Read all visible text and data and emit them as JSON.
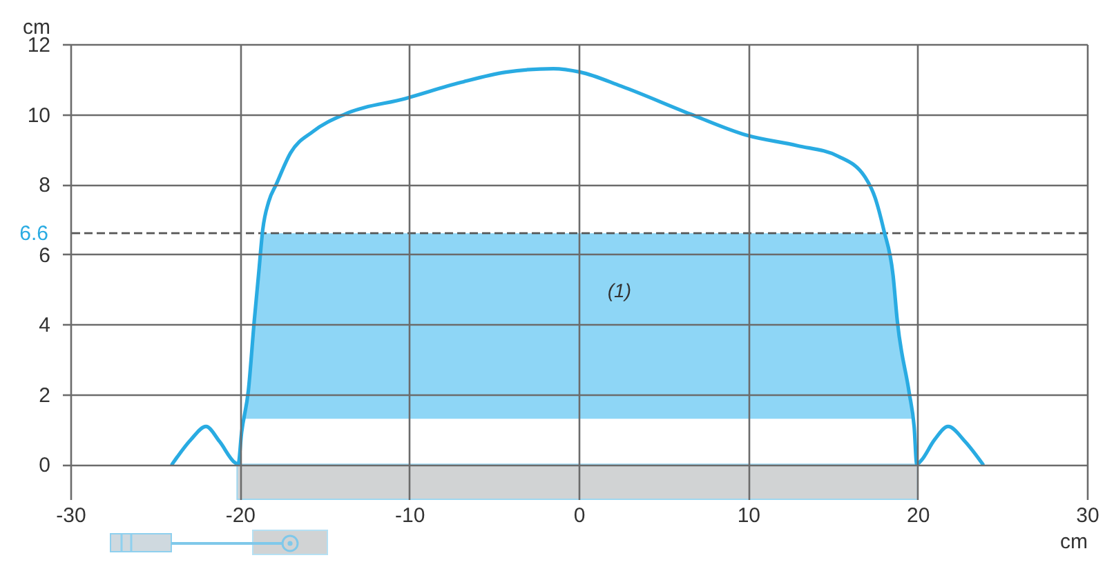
{
  "chart_data": {
    "type": "line",
    "xlabel": "cm",
    "ylabel": "cm",
    "xlim": [
      -30,
      30
    ],
    "xticks": [
      -30,
      -20,
      -10,
      0,
      10,
      20,
      30
    ],
    "ylim": [
      -1,
      12
    ],
    "yticks": [
      0,
      2,
      4,
      6,
      8,
      10,
      12
    ],
    "grid": true,
    "series": [
      {
        "color": "#29abe2",
        "x": [
          -24,
          -22.9,
          -22,
          -21.2,
          -20.3,
          -20.1,
          -19.9,
          -19.5,
          -19.15,
          -18.9,
          -18.65,
          -18.3,
          -17.85,
          -17,
          -15.7,
          -13.8,
          -10.2,
          -7,
          -4.3,
          -1.5,
          0.1,
          2.5,
          6.6,
          9.9,
          12.9,
          15.3,
          16.9,
          17.5,
          18,
          18.55,
          18.8,
          19.5,
          19.8,
          19.95,
          20.2,
          21,
          21.8,
          22.8,
          23.85
        ],
        "values": [
          0,
          0.7,
          1.08,
          0.65,
          0.05,
          0,
          0.9,
          2.1,
          4.1,
          5.4,
          6.7,
          7.5,
          8,
          8.9,
          9.5,
          10,
          10.45,
          10.9,
          11.2,
          11.3,
          11.2,
          10.8,
          10,
          9.4,
          9.1,
          8.8,
          8.2,
          7.6,
          6.7,
          5.4,
          4.1,
          2.05,
          1.05,
          0,
          0.1,
          0.7,
          1.08,
          0.65,
          0
        ]
      }
    ],
    "bands": [
      {
        "axis": "y",
        "from": 1.3,
        "to": 6.6,
        "label": "(1)",
        "color": "#8ed6f6"
      }
    ],
    "ref_lines": [
      {
        "axis": "y",
        "value": 6.6,
        "label": "6.6",
        "color": "#555555",
        "line_style": "dashed"
      }
    ]
  }
}
